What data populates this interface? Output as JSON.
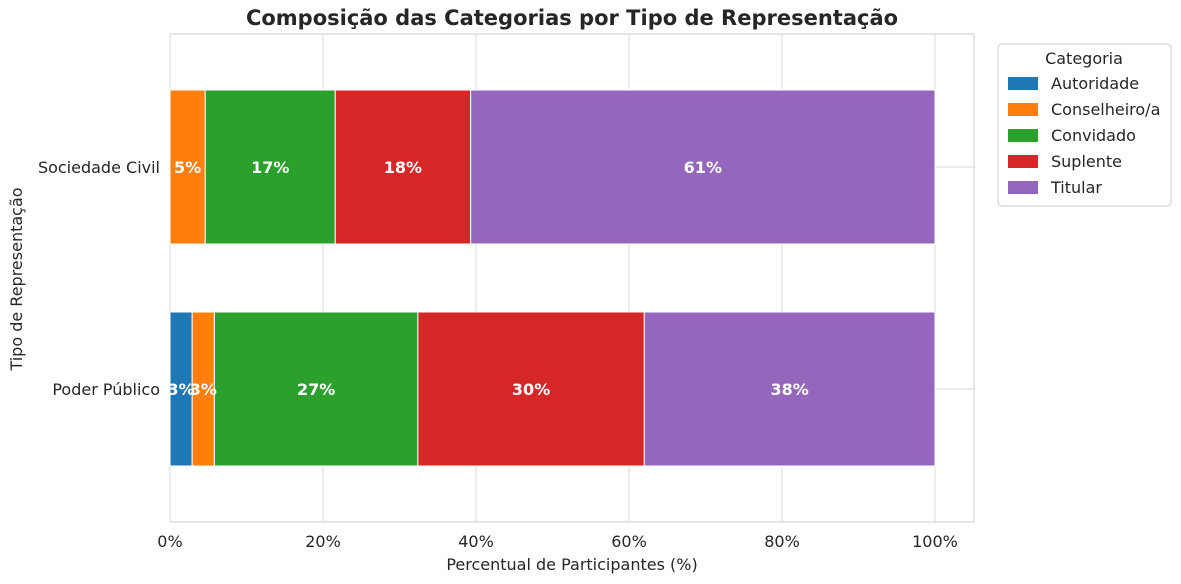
{
  "chart_data": {
    "type": "bar",
    "orientation": "horizontal",
    "stacked": true,
    "title": "Composição das Categorias por Tipo de Representação",
    "xlabel": "Percentual de Participantes (%)",
    "ylabel": "Tipo de Representação",
    "xlim": [
      0,
      105
    ],
    "xticks": [
      0,
      20,
      40,
      60,
      80,
      100
    ],
    "xtick_labels": [
      "0%",
      "20%",
      "40%",
      "60%",
      "80%",
      "100%"
    ],
    "categories": [
      "Sociedade Civil",
      "Poder Público"
    ],
    "series": [
      {
        "name": "Autoridade",
        "color": "#1f77b4",
        "values": [
          0,
          2.9
        ],
        "labels": [
          "",
          "3%"
        ]
      },
      {
        "name": "Conselheiro/a",
        "color": "#ff7f0e",
        "values": [
          4.6,
          2.9
        ],
        "labels": [
          "5%",
          "3%"
        ]
      },
      {
        "name": "Convidado",
        "color": "#2ca02c",
        "values": [
          17.0,
          26.6
        ],
        "labels": [
          "17%",
          "27%"
        ]
      },
      {
        "name": "Suplente",
        "color": "#d62728",
        "values": [
          17.7,
          29.6
        ],
        "labels": [
          "18%",
          "30%"
        ]
      },
      {
        "name": "Titular",
        "color": "#9467bd",
        "values": [
          60.7,
          38.0
        ],
        "labels": [
          "61%",
          "38%"
        ]
      }
    ],
    "legend": {
      "title": "Categoria",
      "placement": "outside-top-right"
    },
    "grid": true
  }
}
